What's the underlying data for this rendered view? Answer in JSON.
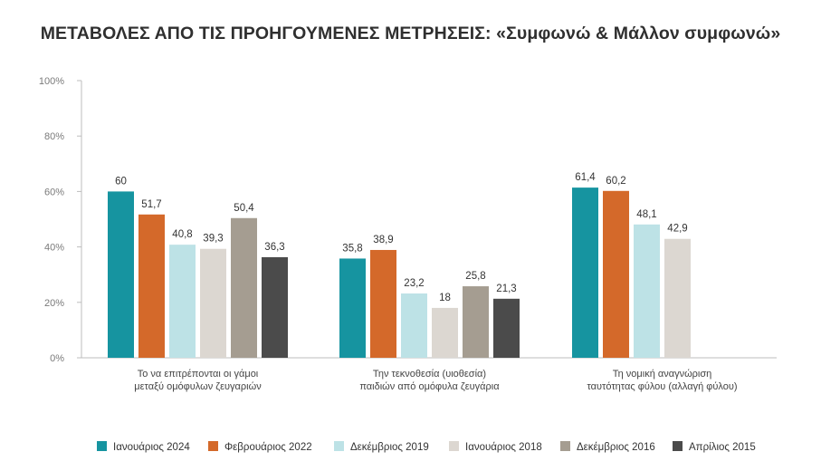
{
  "chart_data": {
    "type": "bar",
    "title": "ΜΕΤΑΒΟΛΕΣ ΑΠΟ ΤΙΣ ΠΡΟΗΓΟΥΜΕΝΕΣ ΜΕΤΡΗΣΕΙΣ: «Συμφωνώ & Μάλλον συμφωνώ»",
    "xlabel": "",
    "ylabel": "",
    "ylim": [
      0,
      100
    ],
    "yticks": [
      "0%",
      "20%",
      "40%",
      "60%",
      "80%",
      "100%"
    ],
    "grid": false,
    "legend_position": "bottom",
    "categories": [
      [
        "Το να επιτρέπονται οι γάμοι",
        "μεταξύ ομόφυλων ζευγαριών"
      ],
      [
        "Την τεκνοθεσία (υιοθεσία)",
        "παιδιών από ομόφυλα ζευγάρια"
      ],
      [
        "Τη νομική αναγνώριση",
        "ταυτότητας φύλου (αλλαγή φύλου)"
      ]
    ],
    "series": [
      {
        "name": "Ιανουάριος 2024",
        "color": "#1694a0",
        "values": [
          60,
          35.8,
          61.4
        ],
        "labels": [
          "60",
          "35,8",
          "61,4"
        ]
      },
      {
        "name": "Φεβρουάριος 2022",
        "color": "#d4692a",
        "values": [
          51.7,
          38.9,
          60.2
        ],
        "labels": [
          "51,7",
          "38,9",
          "60,2"
        ]
      },
      {
        "name": "Δεκέμβριος 2019",
        "color": "#bde2e6",
        "values": [
          40.8,
          23.2,
          48.1
        ],
        "labels": [
          "40,8",
          "23,2",
          "48,1"
        ]
      },
      {
        "name": "Ιανουάριος 2018",
        "color": "#dcd7d1",
        "values": [
          39.3,
          18,
          42.9
        ],
        "labels": [
          "39,3",
          "18",
          "42,9"
        ]
      },
      {
        "name": "Δεκέμβριος 2016",
        "color": "#a59d91",
        "values": [
          50.4,
          25.8,
          null
        ],
        "labels": [
          "50,4",
          "25,8",
          null
        ]
      },
      {
        "name": "Απρίλιος 2015",
        "color": "#4b4b4b",
        "values": [
          36.3,
          21.3,
          null
        ],
        "labels": [
          "36,3",
          "21,3",
          null
        ]
      }
    ]
  }
}
